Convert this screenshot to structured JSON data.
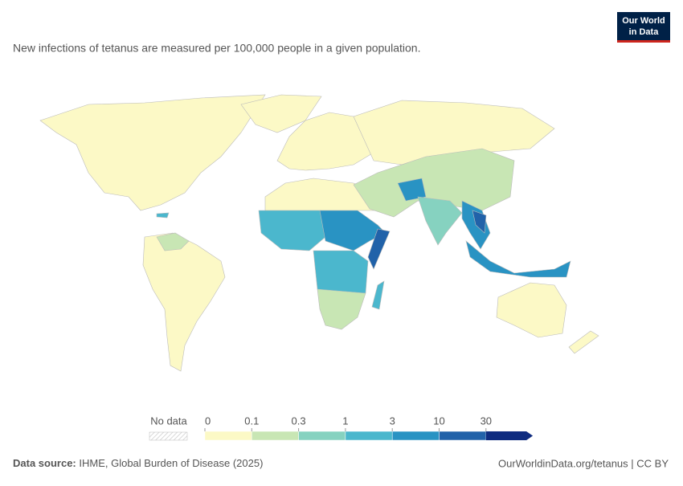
{
  "logo": {
    "line1": "Our World",
    "line2": "in Data"
  },
  "subtitle": "New infections of tetanus are measured per 100,000 people in a given population.",
  "legend": {
    "no_data": "No data",
    "thresholds": [
      0,
      0.1,
      0.3,
      1,
      3,
      10,
      30
    ],
    "colors": [
      "#fcf9c6",
      "#c8e6b4",
      "#86d2c0",
      "#4bb7cd",
      "#2993c3",
      "#2162a9",
      "#0f2c80"
    ]
  },
  "footer": {
    "source_label": "Data source:",
    "source": "IHME, Global Burden of Disease (2025)",
    "url": "OurWorldinData.org/tetanus | CC BY"
  }
}
